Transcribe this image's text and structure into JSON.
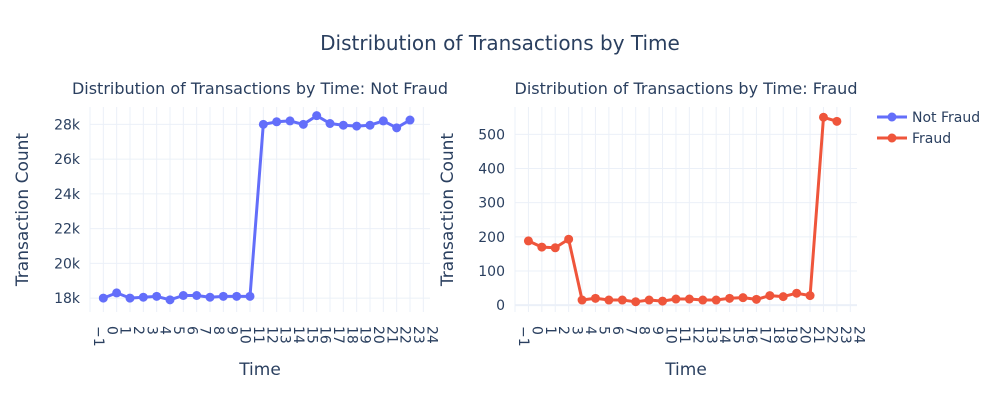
{
  "figure": {
    "title": "Distribution of Transactions by Time"
  },
  "legend": {
    "position": "top-right",
    "items": [
      {
        "name": "Not Fraud",
        "color": "#636efa"
      },
      {
        "name": "Fraud",
        "color": "#ef553b"
      }
    ]
  },
  "chart_data": [
    {
      "type": "line",
      "title": "Distribution of Transactions by Time: Not Fraud",
      "xlabel": "Time",
      "ylabel": "Transaction Count",
      "xlim": [
        -1,
        24.5
      ],
      "ylim": [
        17200,
        29000
      ],
      "grid": true,
      "xticks": [
        -1,
        0,
        1,
        2,
        3,
        4,
        5,
        6,
        7,
        8,
        9,
        10,
        11,
        12,
        13,
        14,
        15,
        16,
        17,
        18,
        19,
        20,
        21,
        22,
        23,
        24
      ],
      "xtick_labels": [
        "−1",
        "0",
        "1",
        "2",
        "3",
        "4",
        "5",
        "6",
        "7",
        "8",
        "9",
        "10",
        "11",
        "12",
        "13",
        "14",
        "15",
        "16",
        "17",
        "18",
        "19",
        "20",
        "21",
        "22",
        "23",
        "24"
      ],
      "yticks": [
        18000,
        20000,
        22000,
        24000,
        26000,
        28000
      ],
      "ytick_labels": [
        "18k",
        "20k",
        "22k",
        "24k",
        "26k",
        "28k"
      ],
      "series": [
        {
          "name": "Not Fraud",
          "color": "#636efa",
          "x": [
            0,
            1,
            2,
            3,
            4,
            5,
            6,
            7,
            8,
            9,
            10,
            11,
            12,
            13,
            14,
            15,
            16,
            17,
            18,
            19,
            20,
            21,
            22,
            23
          ],
          "y": [
            18000,
            18300,
            18000,
            18050,
            18100,
            17900,
            18150,
            18150,
            18050,
            18100,
            18100,
            18100,
            28000,
            28150,
            28200,
            28000,
            28500,
            28050,
            27950,
            27900,
            27950,
            28200,
            27800,
            28250
          ]
        }
      ]
    },
    {
      "type": "line",
      "title": "Distribution of Transactions by Time: Fraud",
      "xlabel": "Time",
      "ylabel": "Transaction Count",
      "xlim": [
        -1,
        24.5
      ],
      "ylim": [
        -20,
        580
      ],
      "grid": true,
      "xticks": [
        -1,
        0,
        1,
        2,
        3,
        4,
        5,
        6,
        7,
        8,
        9,
        10,
        11,
        12,
        13,
        14,
        15,
        16,
        17,
        18,
        19,
        20,
        21,
        22,
        23,
        24
      ],
      "xtick_labels": [
        "−1",
        "0",
        "1",
        "2",
        "3",
        "4",
        "5",
        "6",
        "7",
        "8",
        "9",
        "10",
        "11",
        "12",
        "13",
        "14",
        "15",
        "16",
        "17",
        "18",
        "19",
        "20",
        "21",
        "22",
        "23",
        "24"
      ],
      "yticks": [
        0,
        100,
        200,
        300,
        400,
        500
      ],
      "ytick_labels": [
        "0",
        "100",
        "200",
        "300",
        "400",
        "500"
      ],
      "series": [
        {
          "name": "Fraud",
          "color": "#ef553b",
          "x": [
            0,
            1,
            2,
            3,
            4,
            5,
            6,
            7,
            8,
            9,
            10,
            11,
            12,
            13,
            14,
            15,
            16,
            17,
            18,
            19,
            20,
            21,
            22,
            23
          ],
          "y": [
            188,
            170,
            168,
            193,
            15,
            20,
            15,
            15,
            10,
            15,
            12,
            18,
            18,
            15,
            15,
            20,
            22,
            17,
            28,
            25,
            35,
            28,
            550,
            538
          ]
        }
      ]
    }
  ]
}
